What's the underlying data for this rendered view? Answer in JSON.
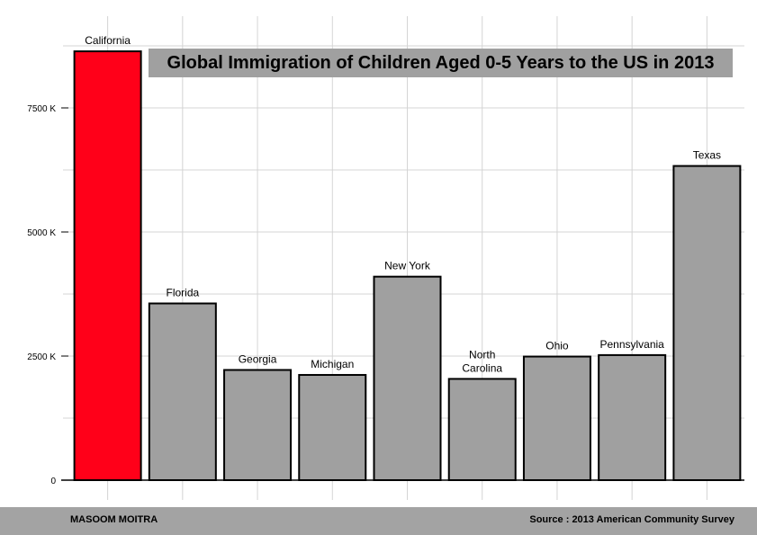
{
  "chart_data": {
    "type": "bar",
    "title": "Global Immigration of Children Aged 0-5 Years to the US in 2013",
    "categories": [
      "California",
      "Florida",
      "Georgia",
      "Michigan",
      "New York",
      "North Carolina",
      "Ohio",
      "Pennsylvania",
      "Texas"
    ],
    "category_label_lines": [
      [
        "California"
      ],
      [
        "Florida"
      ],
      [
        "Georgia"
      ],
      [
        "Michigan"
      ],
      [
        "New York"
      ],
      [
        "North",
        "Carolina"
      ],
      [
        "Ohio"
      ],
      [
        "Pennsylvania"
      ],
      [
        "Texas"
      ]
    ],
    "values": [
      8640,
      3560,
      2220,
      2120,
      4100,
      2040,
      2490,
      2520,
      6330
    ],
    "value_unit": "K",
    "highlight_category": "California",
    "colors": {
      "highlight": "#ff0019",
      "bar": "#a0a0a0",
      "bar_stroke": "#000000",
      "grid": "#d4d4d4"
    },
    "yticks": [
      {
        "value": 0,
        "label": "0"
      },
      {
        "value": 2500,
        "label": "2500 K"
      },
      {
        "value": 5000,
        "label": "5000 K"
      },
      {
        "value": 7500,
        "label": "7500 K"
      }
    ],
    "ylim": [
      0,
      9000
    ],
    "xlabel": "",
    "ylabel": "",
    "grid": true,
    "legend": "none"
  },
  "footer": {
    "author": "MASOOM MOITRA",
    "source": "Source :  2013 American Community Survey"
  }
}
